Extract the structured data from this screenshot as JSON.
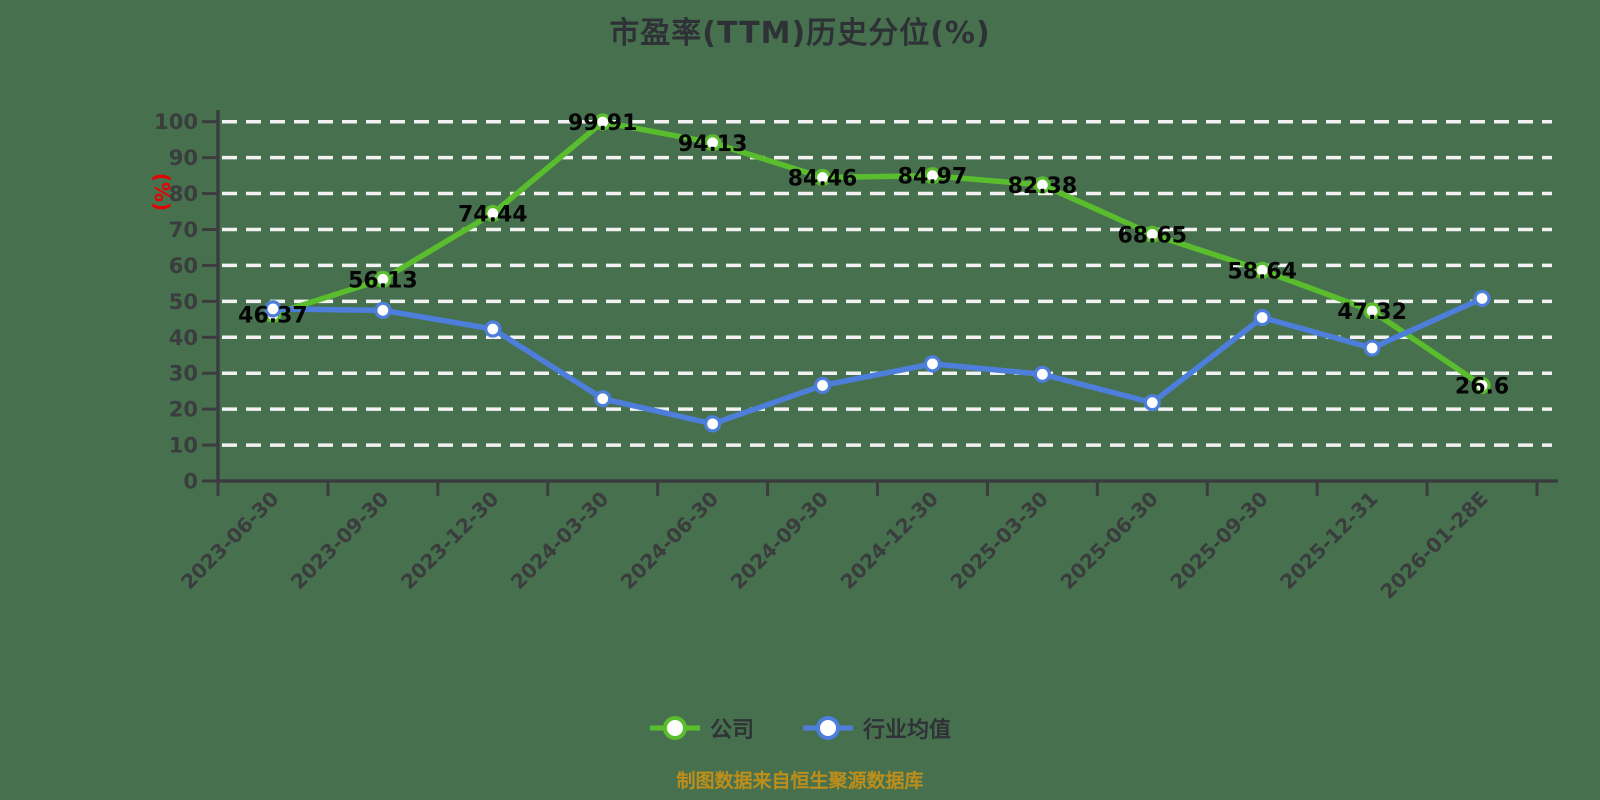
{
  "chart_data": {
    "type": "line",
    "title": "市盈率(TTM)历史分位(%)",
    "categories": [
      "2023-06-30",
      "2023-09-30",
      "2023-12-30",
      "2024-03-30",
      "2024-06-30",
      "2024-09-30",
      "2024-12-30",
      "2025-03-30",
      "2025-06-30",
      "2025-09-30",
      "2025-12-31",
      "2026-01-28E"
    ],
    "series": [
      {
        "name": "公司",
        "color": "#5ABD2D",
        "values": [
          46.37,
          56.13,
          74.44,
          99.91,
          94.13,
          84.46,
          84.97,
          82.38,
          68.65,
          58.64,
          47.32,
          26.6
        ],
        "point_labels": [
          "46.37",
          "56.13",
          "74.44",
          "99.91",
          "94.13",
          "84.46",
          "84.97",
          "82.38",
          "68.65",
          "58.64",
          "47.32",
          "26.6"
        ]
      },
      {
        "name": "行业均值",
        "color": "#4D7EDB",
        "values": [
          47.9,
          47.5,
          42.3,
          22.9,
          15.9,
          26.6,
          32.6,
          29.7,
          21.8,
          45.5,
          37.0,
          50.8
        ],
        "point_labels": []
      }
    ],
    "ylabel": "(%)",
    "xlabel": "",
    "ylim": [
      0,
      100
    ],
    "y_ticks": [
      "0",
      "10",
      "20",
      "30",
      "40",
      "50",
      "60",
      "70",
      "80",
      "90",
      "100"
    ],
    "grid": "horizontal-dashed-white",
    "legend_position": "bottom"
  },
  "y_axis_unit": "(%)",
  "footer": {
    "source_note": "制图数据来自恒生聚源数据库"
  },
  "colors": {
    "background": "#47714E",
    "axis": "#3A3C3E",
    "tick_label": "#3A3C3E",
    "grid_line": "#F2F2F2",
    "data_label": "#050505",
    "marker_fill": "#FFFFFF",
    "unit_label_red": "#E60000",
    "title_text": "#2E3135",
    "footer_text": "#BE8E1A",
    "series_company": "#5ABD2D",
    "series_industry": "#4D7EDB"
  }
}
